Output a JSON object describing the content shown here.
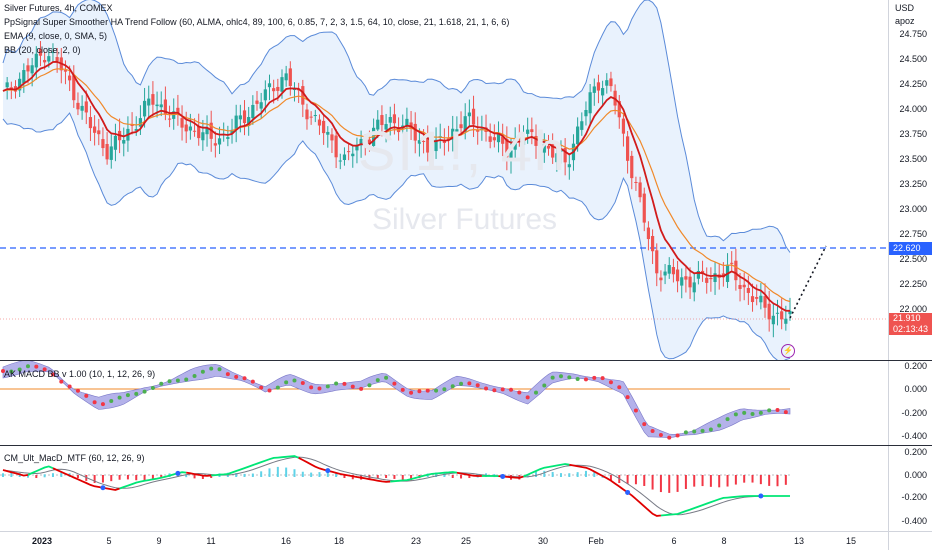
{
  "main": {
    "title": "Silver Futures, 4h, COMEX",
    "indicators": [
      "PpSignal Super Smoother HA Trend Follow (60, ALMA, ohlc4, 89, 100, 6, 0.85, 7, 2, 3, 1.5, 64, 10, close, 21, 1.618, 21, 1, 6, 6)",
      "EMA (9, close, 0, SMA, 5)",
      "BB (20, close, 2, 0)"
    ],
    "watermark_symbol": "SI1!, 4h",
    "watermark_name": "Silver Futures",
    "currency": "USD",
    "unit": "apoz",
    "y_ticks": [
      "24.750",
      "24.500",
      "24.250",
      "24.000",
      "23.750",
      "23.500",
      "23.250",
      "23.000",
      "22.750",
      "22.500",
      "22.250",
      "22.000"
    ],
    "level_price": "22.620",
    "last_price": "21.910",
    "countdown": "02:13:43",
    "colors": {
      "up": "#26a69a",
      "down": "#ef5350",
      "bb": "#5b8bd9",
      "bb_fill": "#e9f2fd",
      "ema": "#f0892a",
      "smoother": "#d11b1b",
      "level": "#2962ff"
    }
  },
  "pane2": {
    "title": "AK MACD BB v 1.00 (10, 1, 12, 26, 9)",
    "y_ticks": [
      "0.200",
      "0.000",
      "-0.200",
      "-0.400"
    ]
  },
  "pane3": {
    "title": "CM_Ult_MacD_MTF (60, 12, 26, 9)",
    "y_ticks": [
      "0.200",
      "0.000",
      "-0.200",
      "-0.400"
    ]
  },
  "x_axis": {
    "ticks": [
      "2023",
      "5",
      "9",
      "11",
      "16",
      "18",
      "23",
      "25",
      "30",
      "Feb",
      "6",
      "8",
      "13",
      "15"
    ]
  },
  "chart_data": {
    "type": "candlestick",
    "title": "Silver Futures, 4h, COMEX",
    "ylim": [
      21.8,
      24.9
    ],
    "close_path": [
      24.15,
      24.3,
      24.45,
      24.6,
      24.4,
      24.1,
      23.8,
      23.6,
      23.7,
      23.9,
      24.1,
      24.0,
      23.85,
      23.8,
      23.7,
      23.75,
      23.9,
      24.05,
      24.2,
      24.35,
      24.1,
      23.9,
      23.7,
      23.5,
      23.65,
      23.8,
      23.9,
      23.85,
      23.7,
      23.6,
      23.75,
      23.9,
      23.85,
      23.7,
      23.6,
      23.75,
      23.7,
      23.55,
      23.5,
      23.9,
      24.3,
      24.2,
      23.6,
      23.0,
      22.4,
      22.35,
      22.3,
      22.3,
      22.35,
      22.4,
      22.2,
      22.05,
      21.95,
      21.91
    ],
    "level": 22.62,
    "last": 21.91
  }
}
